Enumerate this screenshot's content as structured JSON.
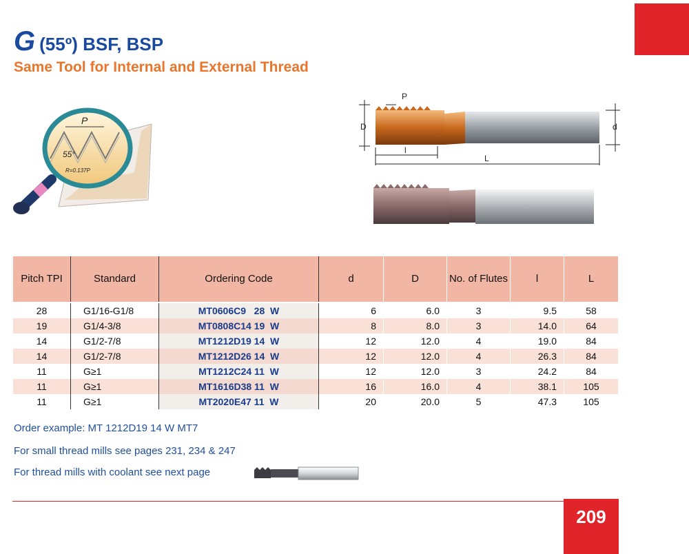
{
  "header": {
    "letter": "G",
    "title_rest": "(55º) BSF, BSP",
    "subtitle": "Same Tool for Internal and External Thread"
  },
  "diagram": {
    "p": "P",
    "angle": "55°",
    "radius": "R=0.137P",
    "dim_p": "P",
    "dim_D": "D",
    "dim_d": "d",
    "dim_l": "l",
    "dim_L": "L"
  },
  "table": {
    "headers": {
      "pitch": "Pitch TPI",
      "standard": "Standard",
      "ordering": "Ordering Code",
      "d": "d",
      "D": "D",
      "flutes": "No. of Flutes",
      "l": "l",
      "L": "L"
    },
    "rows": [
      {
        "pitch": "28",
        "standard": "G1/16-G1/8",
        "code": "MT0606C9   28  W",
        "d": "6",
        "D": "6.0",
        "flutes": "3",
        "l": "9.5",
        "L": "58"
      },
      {
        "pitch": "19",
        "standard": "G1/4-3/8",
        "code": "MT0808C14 19  W",
        "d": "8",
        "D": "8.0",
        "flutes": "3",
        "l": "14.0",
        "L": "64"
      },
      {
        "pitch": "14",
        "standard": "G1/2-7/8",
        "code": "MT1212D19 14  W",
        "d": "12",
        "D": "12.0",
        "flutes": "4",
        "l": "19.0",
        "L": "84"
      },
      {
        "pitch": "14",
        "standard": "G1/2-7/8",
        "code": "MT1212D26 14  W",
        "d": "12",
        "D": "12.0",
        "flutes": "4",
        "l": "26.3",
        "L": "84"
      },
      {
        "pitch": "11",
        "standard": "G≥1",
        "code": "MT1212C24 11  W",
        "d": "12",
        "D": "12.0",
        "flutes": "3",
        "l": "24.2",
        "L": "84"
      },
      {
        "pitch": "11",
        "standard": "G≥1",
        "code": "MT1616D38 11  W",
        "d": "16",
        "D": "16.0",
        "flutes": "4",
        "l": "38.1",
        "L": "105"
      },
      {
        "pitch": "11",
        "standard": "G≥1",
        "code": "MT2020E47 11  W",
        "d": "20",
        "D": "20.0",
        "flutes": "5",
        "l": "47.3",
        "L": "105"
      }
    ]
  },
  "notes": {
    "order_example": "Order example: MT 1212D19 14 W MT7",
    "small_mills": "For small thread mills see pages 231, 234 & 247",
    "coolant": "For thread mills with coolant see next page"
  },
  "page_number": "209",
  "colors": {
    "brand_red": "#e0242a",
    "title_blue": "#1a4aa0",
    "subtitle_orange": "#e8762d",
    "header_salmon": "#f2b7a4"
  }
}
